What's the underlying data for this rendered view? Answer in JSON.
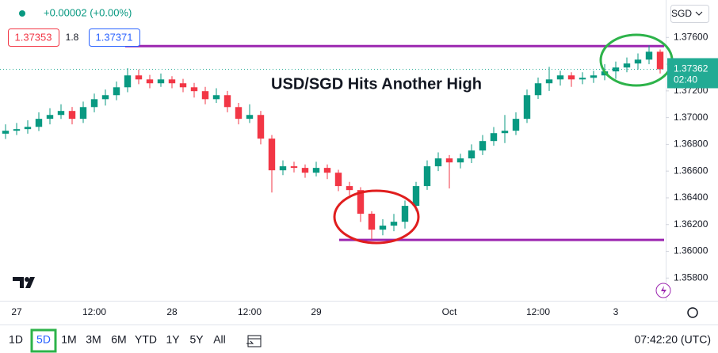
{
  "chart_data": {
    "type": "candlestick",
    "title": "USD/SGD Hits Another High",
    "currency": "SGD",
    "last_time": "02:40",
    "categories": [
      null,
      "27",
      null,
      null,
      null,
      null,
      null,
      null,
      "12:00",
      null,
      null,
      null,
      null,
      null,
      null,
      "28",
      null,
      null,
      null,
      null,
      null,
      null,
      "12:00",
      null,
      null,
      null,
      null,
      null,
      "29",
      null,
      null,
      null,
      null,
      null,
      null,
      null,
      null,
      null,
      null,
      null,
      "Oct",
      null,
      null,
      null,
      null,
      null,
      null,
      null,
      "12:00",
      null,
      null,
      null,
      null,
      null,
      null,
      "3",
      null,
      null,
      null,
      null
    ],
    "open": [
      1.3688,
      1.36902,
      1.36914,
      1.36931,
      1.36991,
      1.3702,
      1.3705,
      1.36991,
      1.37079,
      1.37138,
      1.37168,
      1.37227,
      1.37316,
      1.37286,
      1.37257,
      1.37286,
      1.37257,
      1.37227,
      1.37198,
      1.37138,
      1.37168,
      1.37079,
      1.36991,
      1.3702,
      1.36843,
      1.36606,
      1.36636,
      1.36624,
      1.36588,
      1.36624,
      1.36588,
      1.36488,
      1.36458,
      1.36281,
      1.36162,
      1.36192,
      1.36221,
      1.3634,
      1.36488,
      1.36636,
      1.36695,
      1.36665,
      1.36695,
      1.36754,
      1.36825,
      1.36884,
      1.36902,
      1.36991,
      1.37168,
      1.37257,
      1.37286,
      1.37316,
      1.37286,
      1.37298,
      1.37316,
      1.37346,
      1.37375,
      1.37405,
      1.37434,
      1.37493
    ],
    "high": [
      1.3695,
      1.3696,
      1.3698,
      1.3704,
      1.3707,
      1.371,
      1.3708,
      1.3712,
      1.3718,
      1.3721,
      1.3727,
      1.3737,
      1.3736,
      1.3732,
      1.3733,
      1.3731,
      1.3729,
      1.3726,
      1.3723,
      1.3722,
      1.372,
      1.3711,
      1.371,
      1.3705,
      1.3687,
      1.3668,
      1.3667,
      1.3665,
      1.3667,
      1.3665,
      1.3661,
      1.3652,
      1.3648,
      1.363,
      1.3624,
      1.3628,
      1.3638,
      1.3652,
      1.3668,
      1.3674,
      1.3672,
      1.3673,
      1.368,
      1.3687,
      1.3693,
      1.3702,
      1.3704,
      1.3721,
      1.373,
      1.3738,
      1.3735,
      1.3734,
      1.3734,
      1.3735,
      1.374,
      1.3742,
      1.3745,
      1.3748,
      1.3754,
      1.3751
    ],
    "low": [
      1.3684,
      1.3687,
      1.3688,
      1.369,
      1.3695,
      1.3699,
      1.3695,
      1.3696,
      1.3704,
      1.3709,
      1.3713,
      1.3719,
      1.3725,
      1.3722,
      1.3723,
      1.3722,
      1.3719,
      1.3715,
      1.371,
      1.3711,
      1.3704,
      1.3695,
      1.3696,
      1.368,
      1.3644,
      1.3657,
      1.3659,
      1.3655,
      1.3656,
      1.3654,
      1.3645,
      1.3642,
      1.3622,
      1.3609,
      1.3612,
      1.3615,
      1.3617,
      1.363,
      1.3646,
      1.366,
      1.3647,
      1.3662,
      1.3666,
      1.3672,
      1.3679,
      1.3681,
      1.3687,
      1.3696,
      1.3714,
      1.372,
      1.3724,
      1.3723,
      1.3725,
      1.3726,
      1.3728,
      1.3729,
      1.3734,
      1.3736,
      1.374,
      1.3733
    ],
    "close": [
      1.36902,
      1.36914,
      1.36931,
      1.36991,
      1.3702,
      1.3705,
      1.36991,
      1.37079,
      1.37138,
      1.37168,
      1.37227,
      1.37316,
      1.37286,
      1.37257,
      1.37286,
      1.37257,
      1.37227,
      1.37198,
      1.37138,
      1.37168,
      1.37079,
      1.36991,
      1.3702,
      1.36843,
      1.36606,
      1.36636,
      1.36624,
      1.36588,
      1.36624,
      1.36588,
      1.36488,
      1.36458,
      1.36281,
      1.36162,
      1.36192,
      1.36221,
      1.3634,
      1.36488,
      1.36636,
      1.36695,
      1.36665,
      1.36695,
      1.36754,
      1.36825,
      1.36884,
      1.36902,
      1.36991,
      1.37168,
      1.37257,
      1.37286,
      1.37316,
      1.37286,
      1.37298,
      1.37316,
      1.37346,
      1.37375,
      1.37405,
      1.37434,
      1.37493,
      1.37362
    ],
    "up_color": "#089981",
    "down_color": "#f23645",
    "last_color": "#22ab94",
    "ylim": [
      1.3563,
      1.3788
    ],
    "yticks": [
      {
        "value": 1.376,
        "label": "1.37600"
      },
      {
        "value": 1.374,
        "label": "1.37400"
      },
      {
        "value": 1.372,
        "label": "1.37200"
      },
      {
        "value": 1.37,
        "label": "1.37000"
      },
      {
        "value": 1.368,
        "label": "1.36800"
      },
      {
        "value": 1.366,
        "label": "1.36600"
      },
      {
        "value": 1.364,
        "label": "1.36400"
      },
      {
        "value": 1.362,
        "label": "1.36200"
      },
      {
        "value": 1.36,
        "label": "1.36000"
      },
      {
        "value": 1.358,
        "label": "1.35800"
      }
    ],
    "levels": [
      {
        "value": 1.37535,
        "color": "#9c27b0"
      },
      {
        "value": 1.36085,
        "color": "#9c27b0"
      }
    ]
  },
  "legend": {
    "change": "+0.00002 (+0.00%)",
    "bid": "1.37353",
    "spread": "1.8",
    "ask": "1.37371"
  },
  "toolbar": {
    "ranges": [
      "1D",
      "5D",
      "1M",
      "3M",
      "6M",
      "YTD",
      "1Y",
      "5Y",
      "All"
    ],
    "active": 1,
    "time": "07:42:20 (UTC)"
  }
}
